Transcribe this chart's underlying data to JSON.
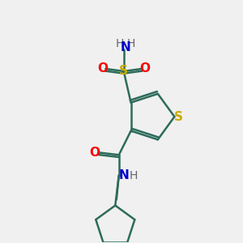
{
  "background_color": "#f0f0f0",
  "bond_color": "#2d6b5a",
  "atom_colors": {
    "S_thiophene": "#ccaa00",
    "S_sulfonamide": "#ccaa00",
    "O": "#ff0000",
    "N": "#0000cc",
    "H": "#666666",
    "C": "#2d6b5a"
  },
  "figsize": [
    3.0,
    3.0
  ],
  "dpi": 100
}
